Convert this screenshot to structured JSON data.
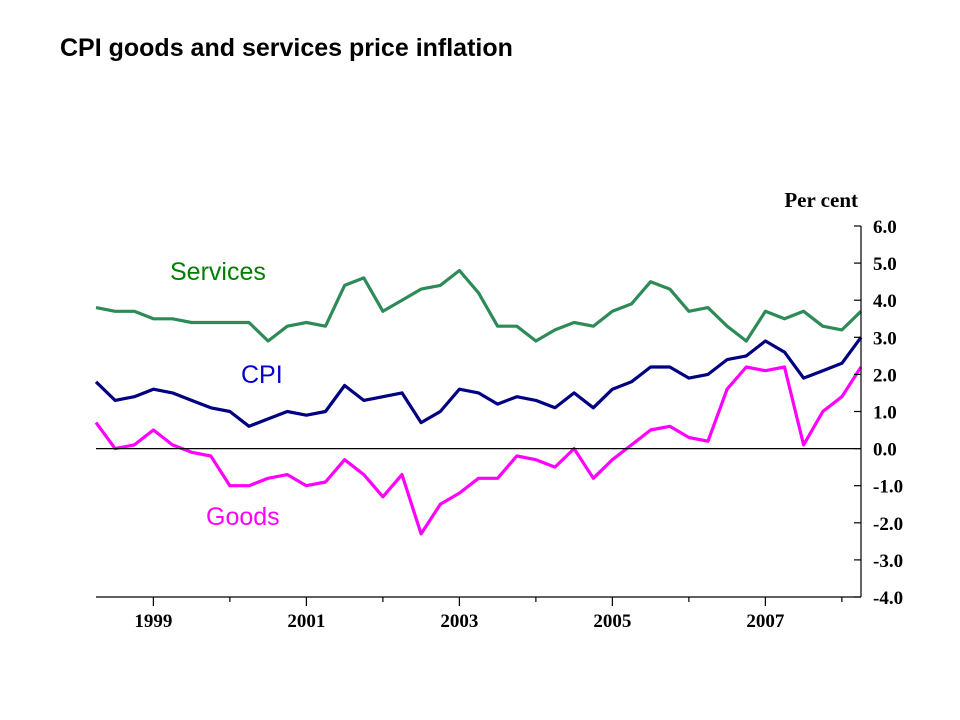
{
  "title": "CPI goods and services price inflation",
  "chart_data": {
    "type": "line",
    "title": "CPI goods and services price inflation",
    "ylabel": "Per cent",
    "ylim": [
      -4.0,
      6.0
    ],
    "yticks": [
      6.0,
      5.0,
      4.0,
      3.0,
      2.0,
      1.0,
      0.0,
      -1.0,
      -2.0,
      -3.0,
      -4.0
    ],
    "ytick_labels": [
      "6.0",
      "5.0",
      "4.0",
      "3.0",
      "2.0",
      "1.0",
      "0.0",
      "-1.0",
      "-2.0",
      "-3.0",
      "-4.0"
    ],
    "xlim": [
      1998.25,
      2008.25
    ],
    "xticks": [
      1999,
      2001,
      2003,
      2005,
      2007
    ],
    "xtick_labels": [
      "1999",
      "2001",
      "2003",
      "2005",
      "2007"
    ],
    "zero_line": true,
    "grid": false,
    "series": [
      {
        "name": "Services",
        "color": "#2e8b57",
        "label_color": "#008000",
        "x": [
          1998.25,
          1998.5,
          1998.75,
          1999.0,
          1999.25,
          1999.5,
          1999.75,
          2000.0,
          2000.25,
          2000.5,
          2000.75,
          2001.0,
          2001.25,
          2001.5,
          2001.75,
          2002.0,
          2002.25,
          2002.5,
          2002.75,
          2003.0,
          2003.25,
          2003.5,
          2003.75,
          2004.0,
          2004.25,
          2004.5,
          2004.75,
          2005.0,
          2005.25,
          2005.5,
          2005.75,
          2006.0,
          2006.25,
          2006.5,
          2006.75,
          2007.0,
          2007.25,
          2007.5,
          2007.75,
          2008.0,
          2008.25
        ],
        "values": [
          3.8,
          3.7,
          3.7,
          3.5,
          3.5,
          3.4,
          3.4,
          3.4,
          3.4,
          2.9,
          3.3,
          3.4,
          3.3,
          4.4,
          4.6,
          3.7,
          4.0,
          4.3,
          4.4,
          4.8,
          4.2,
          3.3,
          3.3,
          2.9,
          3.2,
          3.4,
          3.3,
          3.7,
          3.9,
          4.5,
          4.3,
          3.7,
          3.8,
          3.3,
          2.9,
          3.7,
          3.5,
          3.7,
          3.3,
          3.2,
          3.7
        ]
      },
      {
        "name": "CPI",
        "color": "#000080",
        "label_color": "#0000cd",
        "x": [
          1998.25,
          1998.5,
          1998.75,
          1999.0,
          1999.25,
          1999.5,
          1999.75,
          2000.0,
          2000.25,
          2000.5,
          2000.75,
          2001.0,
          2001.25,
          2001.5,
          2001.75,
          2002.0,
          2002.25,
          2002.5,
          2002.75,
          2003.0,
          2003.25,
          2003.5,
          2003.75,
          2004.0,
          2004.25,
          2004.5,
          2004.75,
          2005.0,
          2005.25,
          2005.5,
          2005.75,
          2006.0,
          2006.25,
          2006.5,
          2006.75,
          2007.0,
          2007.25,
          2007.5,
          2007.75,
          2008.0,
          2008.25
        ],
        "values": [
          1.8,
          1.3,
          1.4,
          1.6,
          1.5,
          1.3,
          1.1,
          1.0,
          0.6,
          0.8,
          1.0,
          0.9,
          1.0,
          1.7,
          1.3,
          1.4,
          1.5,
          0.7,
          1.0,
          1.6,
          1.5,
          1.2,
          1.4,
          1.3,
          1.1,
          1.5,
          1.1,
          1.6,
          1.8,
          2.2,
          2.2,
          1.9,
          2.0,
          2.4,
          2.5,
          2.9,
          2.6,
          1.9,
          2.1,
          2.3,
          3.0
        ]
      },
      {
        "name": "Goods",
        "color": "#ff00ff",
        "label_color": "#ff00ff",
        "x": [
          1998.25,
          1998.5,
          1998.75,
          1999.0,
          1999.25,
          1999.5,
          1999.75,
          2000.0,
          2000.25,
          2000.5,
          2000.75,
          2001.0,
          2001.25,
          2001.5,
          2001.75,
          2002.0,
          2002.25,
          2002.5,
          2002.75,
          2003.0,
          2003.25,
          2003.5,
          2003.75,
          2004.0,
          2004.25,
          2004.5,
          2004.75,
          2005.0,
          2005.25,
          2005.5,
          2005.75,
          2006.0,
          2006.25,
          2006.5,
          2006.75,
          2007.0,
          2007.25,
          2007.5,
          2007.75,
          2008.0,
          2008.25
        ],
        "values": [
          0.7,
          0.0,
          0.1,
          0.5,
          0.1,
          -0.1,
          -0.2,
          -1.0,
          -1.0,
          -0.8,
          -0.7,
          -1.0,
          -0.9,
          -0.3,
          -0.7,
          -1.3,
          -0.7,
          -2.3,
          -1.5,
          -1.2,
          -0.8,
          -0.8,
          -0.2,
          -0.3,
          -0.5,
          0.0,
          -0.8,
          -0.3,
          0.1,
          0.5,
          0.6,
          0.3,
          0.2,
          1.6,
          2.2,
          2.1,
          2.2,
          0.1,
          1.0,
          1.4,
          2.2
        ]
      }
    ]
  }
}
